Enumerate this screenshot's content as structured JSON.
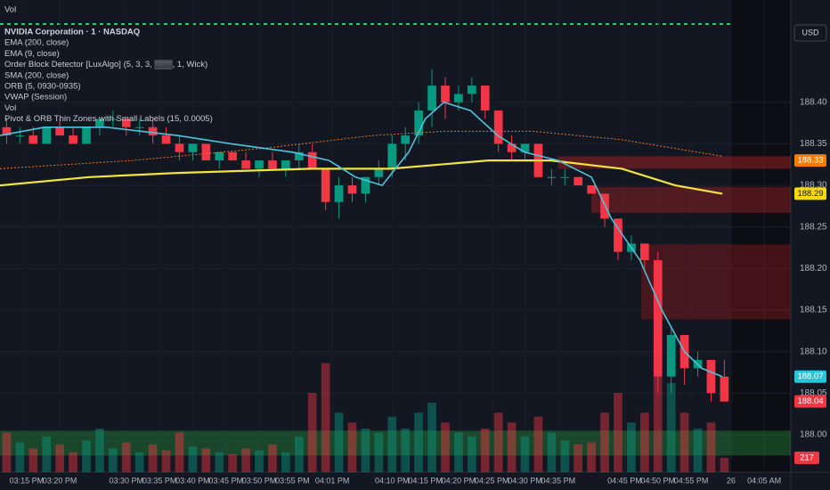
{
  "chart_data": {
    "type": "candlestick",
    "pane_label": "Vol",
    "currency": "USD",
    "legend": [
      "NVIDIA Corporation · 1 · NASDAQ",
      "EMA (200, close)",
      "EMA (9, close)",
      "Order Block Detector [LuxAlgo] (5, 3, 3, ▒▒▒, 1, Wick)",
      "SMA (200, close)",
      "ORB (5, 0930-0935)",
      "VWAP (Session)",
      "Vol",
      "Pivot & ORB Thin Zones with Small Labels (15, 0.0005)"
    ],
    "up_color": "#089981",
    "down_color": "#f23645",
    "x": [
      912,
      914,
      916,
      918,
      920,
      922,
      924,
      926,
      928,
      930,
      932,
      934,
      936,
      938,
      940,
      942,
      944,
      946,
      948,
      950,
      952,
      954,
      956,
      958,
      960,
      962,
      964,
      966,
      968,
      970,
      972,
      974,
      976,
      978,
      980,
      982,
      984,
      986,
      988,
      990,
      992,
      994,
      996,
      998,
      1000,
      1002,
      1004,
      1006,
      1008,
      1010,
      1012,
      1014,
      1016,
      1018,
      1020
    ],
    "open": [
      188.37,
      188.36,
      188.36,
      188.35,
      188.37,
      188.36,
      188.35,
      188.37,
      188.38,
      188.38,
      188.37,
      188.37,
      188.36,
      188.35,
      188.34,
      188.35,
      188.33,
      188.34,
      188.33,
      188.32,
      188.33,
      188.32,
      188.33,
      188.34,
      188.32,
      188.28,
      188.3,
      188.29,
      188.31,
      188.32,
      188.35,
      188.36,
      188.39,
      188.42,
      188.4,
      188.41,
      188.42,
      188.39,
      188.35,
      188.34,
      188.35,
      188.31,
      188.31,
      188.31,
      188.3,
      188.29,
      188.26,
      188.22,
      188.23,
      188.21,
      188.07,
      188.12,
      188.08,
      188.09,
      188.07
    ],
    "high": [
      188.38,
      188.37,
      188.37,
      188.37,
      188.38,
      188.37,
      188.37,
      188.38,
      188.39,
      188.38,
      188.38,
      188.38,
      188.37,
      188.36,
      188.35,
      188.35,
      188.34,
      188.34,
      188.34,
      188.33,
      188.34,
      188.33,
      188.35,
      188.35,
      188.32,
      188.31,
      188.31,
      188.31,
      188.33,
      188.36,
      188.37,
      188.4,
      188.44,
      188.43,
      188.42,
      188.43,
      188.42,
      188.39,
      188.36,
      188.35,
      188.35,
      188.32,
      188.32,
      188.31,
      188.3,
      188.29,
      188.26,
      188.24,
      188.23,
      188.22,
      188.13,
      188.12,
      188.1,
      188.09,
      188.09
    ],
    "low": [
      188.35,
      188.35,
      188.35,
      188.35,
      188.36,
      188.35,
      188.35,
      188.36,
      188.37,
      188.36,
      188.36,
      188.35,
      188.35,
      188.33,
      188.33,
      188.33,
      188.32,
      188.33,
      188.32,
      188.31,
      188.32,
      188.31,
      188.32,
      188.32,
      188.27,
      188.26,
      188.28,
      188.28,
      188.3,
      188.31,
      188.33,
      188.35,
      188.37,
      188.38,
      188.39,
      188.4,
      188.38,
      188.34,
      188.33,
      188.33,
      188.31,
      188.3,
      188.3,
      188.3,
      188.29,
      188.25,
      188.21,
      188.21,
      188.2,
      188.05,
      188.05,
      188.06,
      188.07,
      188.04,
      188.04
    ],
    "close": [
      188.36,
      188.36,
      188.35,
      188.37,
      188.36,
      188.35,
      188.37,
      188.38,
      188.38,
      188.37,
      188.37,
      188.36,
      188.35,
      188.34,
      188.35,
      188.33,
      188.34,
      188.33,
      188.32,
      188.33,
      188.32,
      188.33,
      188.34,
      188.32,
      188.28,
      188.3,
      188.29,
      188.31,
      188.32,
      188.35,
      188.36,
      188.39,
      188.42,
      188.4,
      188.41,
      188.42,
      188.39,
      188.35,
      188.34,
      188.35,
      188.31,
      188.31,
      188.31,
      188.3,
      188.29,
      188.26,
      188.22,
      188.23,
      188.21,
      188.07,
      188.12,
      188.08,
      188.09,
      188.05,
      188.04
    ],
    "volume": [
      600,
      450,
      360,
      540,
      420,
      300,
      480,
      660,
      360,
      450,
      300,
      420,
      330,
      600,
      390,
      360,
      300,
      270,
      360,
      330,
      420,
      300,
      540,
      1200,
      1650,
      900,
      750,
      660,
      600,
      840,
      660,
      900,
      1050,
      750,
      600,
      540,
      660,
      900,
      750,
      540,
      840,
      600,
      480,
      420,
      450,
      900,
      1200,
      750,
      900,
      1800,
      1350,
      900,
      660,
      750,
      217
    ],
    "volume_ylim": [
      0,
      3100
    ],
    "lines": [
      {
        "color": "#f0e442",
        "width": 2.2,
        "x": [
          911,
          924.4,
          937.7,
          957.8,
          969.8,
          984.5,
          993.9,
          1004.6,
          1012.6,
          1019.7
        ],
        "values": [
          188.3,
          188.31,
          188.315,
          188.32,
          188.32,
          188.33,
          188.33,
          188.32,
          188.3,
          188.29
        ]
      },
      {
        "color": "#e8772e",
        "width": 1,
        "dashed": true,
        "x": [
          911,
          931,
          951.1,
          967.1,
          977.8,
          991.2,
          1004.6,
          1019.7
        ],
        "values": [
          188.32,
          188.33,
          188.345,
          188.36,
          188.365,
          188.365,
          188.355,
          188.335
        ]
      },
      {
        "color": "#4fc3dc",
        "width": 1.6,
        "x": [
          911,
          917.7,
          927,
          937.7,
          945.8,
          955,
          960.5,
          964.5,
          968.5,
          972.5,
          975,
          977.8,
          981.8,
          985.9,
          989.9,
          995,
          1000,
          1003,
          1007.3,
          1010.6,
          1014,
          1016.6,
          1019.7
        ],
        "values": [
          188.36,
          188.37,
          188.37,
          188.36,
          188.35,
          188.34,
          188.33,
          188.31,
          188.3,
          188.34,
          188.38,
          188.4,
          188.39,
          188.36,
          188.34,
          188.33,
          188.31,
          188.26,
          188.21,
          188.15,
          188.1,
          188.08,
          188.07
        ]
      }
    ],
    "zones": [
      {
        "color": "rgba(178,34,34,0.45)",
        "x": [
          995,
          1030
        ],
        "y": [
          188.32,
          188.335
        ]
      },
      {
        "color": "rgba(178,34,34,0.4)",
        "x": [
          1000,
          1030
        ],
        "y": [
          188.267,
          188.298
        ]
      },
      {
        "color": "rgba(150,24,24,0.4)",
        "x": [
          1007.5,
          1030
        ],
        "y": [
          188.139,
          188.229
        ]
      },
      {
        "color": "rgba(40,160,60,0.35)",
        "x": [
          911,
          1030
        ],
        "y": [
          187.975,
          188.005
        ]
      }
    ],
    "price_tags": [
      {
        "value": 188.33,
        "color": "#f57c00"
      },
      {
        "value": 188.29,
        "color": "#f5d90a"
      },
      {
        "value": 188.07,
        "color": "#26c6da"
      },
      {
        "value": 188.04,
        "color": "#f23645"
      }
    ],
    "volume_tag": {
      "value": 217,
      "color": "#f23645"
    },
    "xlim": [
      911,
      1030
    ],
    "xticks": [
      {
        "value": 915,
        "label": "03:15 PM"
      },
      {
        "value": 920,
        "label": "03:20 PM"
      },
      {
        "value": 930,
        "label": "03:30 PM"
      },
      {
        "value": 935,
        "label": "03:35 PM"
      },
      {
        "value": 940,
        "label": "03:40 PM"
      },
      {
        "value": 945,
        "label": "03:45 PM"
      },
      {
        "value": 950,
        "label": "03:50 PM"
      },
      {
        "value": 955,
        "label": "03:55 PM"
      },
      {
        "value": 961,
        "label": "04:01 PM"
      },
      {
        "value": 970,
        "label": "04:10 PM"
      },
      {
        "value": 975,
        "label": "04:15 PM"
      },
      {
        "value": 980,
        "label": "04:20 PM"
      },
      {
        "value": 985,
        "label": "04:25 PM"
      },
      {
        "value": 990,
        "label": "04:30 PM"
      },
      {
        "value": 995,
        "label": "04:35 PM"
      },
      {
        "value": 1005,
        "label": "04:45 PM"
      },
      {
        "value": 1010,
        "label": "04:50 PM"
      },
      {
        "value": 1015,
        "label": "04:55 PM"
      },
      {
        "value": 1021,
        "label": "26"
      },
      {
        "value": 1026,
        "label": "04:05 AM"
      }
    ],
    "ylim": [
      187.955,
      188.523
    ],
    "yticks": [
      {
        "value": 188.0,
        "label": "188.00"
      },
      188.05,
      {
        "value": 188.1,
        "label": "188.10"
      },
      188.15,
      {
        "value": 188.2,
        "label": "188.20"
      },
      188.25,
      {
        "value": 188.3,
        "label": "188.30"
      },
      188.35,
      {
        "value": 188.4,
        "label": "188.40"
      }
    ]
  }
}
